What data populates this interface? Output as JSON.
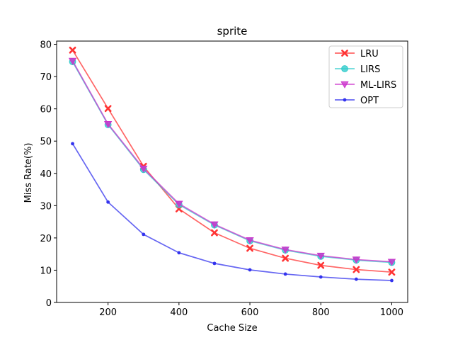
{
  "chart_data": {
    "type": "line",
    "title": "sprite",
    "xlabel": "Cache Size",
    "ylabel": "Miss Rate(%)",
    "x": [
      100,
      200,
      300,
      400,
      500,
      600,
      700,
      800,
      900,
      1000
    ],
    "xlim": [
      55,
      1045
    ],
    "ylim": [
      0,
      81
    ],
    "xticks": [
      200,
      400,
      600,
      800,
      1000
    ],
    "yticks": [
      0,
      10,
      20,
      30,
      40,
      50,
      60,
      70,
      80
    ],
    "grid": false,
    "legend_position": "top-right",
    "series": [
      {
        "name": "LRU",
        "marker": "x",
        "color": "#ff3333",
        "values": [
          78.2,
          60.1,
          42.2,
          29.0,
          21.6,
          16.8,
          13.7,
          11.5,
          10.2,
          9.4
        ]
      },
      {
        "name": "LIRS",
        "marker": "circle",
        "color": "#33cccc",
        "values": [
          74.6,
          55.1,
          41.2,
          30.3,
          24.0,
          19.1,
          16.2,
          14.3,
          13.1,
          12.4
        ]
      },
      {
        "name": "ML-LIRS",
        "marker": "triangle-down",
        "color": "#cc33cc",
        "values": [
          74.9,
          55.3,
          41.5,
          30.6,
          24.2,
          19.3,
          16.4,
          14.5,
          13.3,
          12.6
        ]
      },
      {
        "name": "OPT",
        "marker": "dot",
        "color": "#3333ee",
        "values": [
          49.2,
          31.1,
          21.1,
          15.4,
          12.1,
          10.1,
          8.8,
          7.9,
          7.2,
          6.8
        ]
      }
    ]
  }
}
